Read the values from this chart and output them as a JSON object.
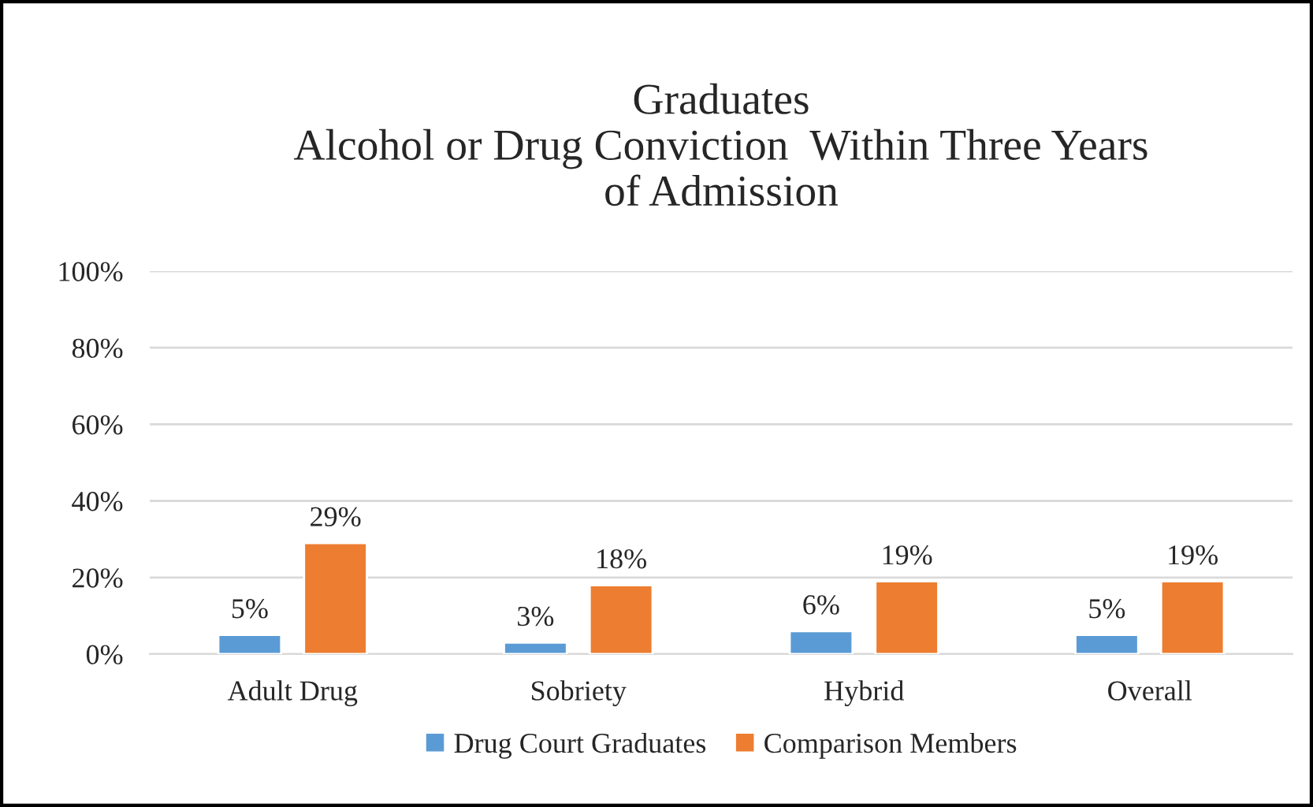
{
  "chart_data": {
    "type": "bar",
    "title": "Graduates\nAlcohol or Drug Conviction  Within Three Years\nof Admission",
    "categories": [
      "Adult Drug",
      "Sobriety",
      "Hybrid",
      "Overall"
    ],
    "series": [
      {
        "name": "Drug Court Graduates",
        "color": "#5b9bd5",
        "values": [
          5,
          3,
          6,
          5
        ],
        "value_labels": [
          "5%",
          "3%",
          "6%",
          "5%"
        ]
      },
      {
        "name": "Comparison Members",
        "color": "#ed7d31",
        "values": [
          29,
          18,
          19,
          19
        ],
        "value_labels": [
          "29%",
          "18%",
          "19%",
          "19%"
        ]
      }
    ],
    "ylim": [
      0,
      100
    ],
    "yticks": [
      {
        "value": 0,
        "label": "0%"
      },
      {
        "value": 20,
        "label": "20%"
      },
      {
        "value": 40,
        "label": "40%"
      },
      {
        "value": 60,
        "label": "60%"
      },
      {
        "value": 80,
        "label": "80%"
      },
      {
        "value": 100,
        "label": "100%"
      }
    ],
    "grid": "y",
    "legend": "bottom"
  }
}
